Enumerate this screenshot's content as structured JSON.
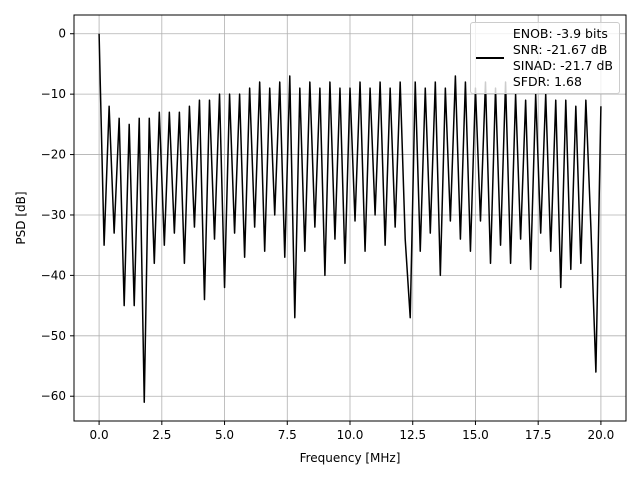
{
  "chart_data": {
    "type": "line",
    "xlabel": "Frequency [MHz]",
    "ylabel": "PSD [dB]",
    "x": [
      0,
      0.2,
      0.4,
      0.6,
      0.8,
      1.0,
      1.2,
      1.4,
      1.6,
      1.8,
      2.0,
      2.2,
      2.4,
      2.6,
      2.8,
      3.0,
      3.2,
      3.4,
      3.6,
      3.8,
      4.0,
      4.2,
      4.4,
      4.6,
      4.8,
      5.0,
      5.2,
      5.4,
      5.6,
      5.8,
      6.0,
      6.2,
      6.4,
      6.6,
      6.8,
      7.0,
      7.2,
      7.4,
      7.6,
      7.8,
      8.0,
      8.2,
      8.4,
      8.6,
      8.8,
      9.0,
      9.2,
      9.4,
      9.6,
      9.8,
      10.0,
      10.2,
      10.4,
      10.6,
      10.8,
      11.0,
      11.2,
      11.4,
      11.6,
      11.8,
      12.0,
      12.2,
      12.4,
      12.6,
      12.8,
      13.0,
      13.2,
      13.4,
      13.6,
      13.8,
      14.0,
      14.2,
      14.4,
      14.6,
      14.8,
      15.0,
      15.2,
      15.4,
      15.6,
      15.8,
      16.0,
      16.2,
      16.4,
      16.6,
      16.8,
      17.0,
      17.2,
      17.4,
      17.6,
      17.8,
      18.0,
      18.2,
      18.4,
      18.6,
      18.8,
      19.0,
      19.2,
      19.4,
      19.6,
      19.8,
      20.0
    ],
    "series": [
      {
        "name": "ENOB: -3.9 bits\nSNR: -21.67 dB\nSINAD: -21.7 dB\nSFDR: 1.68",
        "color": "#000000",
        "values": [
          0,
          -35,
          -12,
          -33,
          -14,
          -45,
          -15,
          -45,
          -14,
          -61,
          -14,
          -38,
          -13,
          -35,
          -13,
          -33,
          -13,
          -38,
          -12,
          -32,
          -11,
          -44,
          -11,
          -34,
          -10,
          -42,
          -10,
          -33,
          -10,
          -37,
          -9,
          -32,
          -8,
          -36,
          -9,
          -30,
          -8,
          -37,
          -7,
          -47,
          -9,
          -36,
          -8,
          -32,
          -9,
          -40,
          -8,
          -34,
          -9,
          -38,
          -9,
          -31,
          -8,
          -36,
          -9,
          -30,
          -8,
          -35,
          -9,
          -32,
          -8,
          -34,
          -47,
          -8,
          -36,
          -9,
          -33,
          -8,
          -40,
          -9,
          -31,
          -7,
          -34,
          -8,
          -36,
          -9,
          -31,
          -8,
          -38,
          -9,
          -35,
          -8,
          -38,
          -10,
          -34,
          -11,
          -39,
          -10,
          -33,
          -10,
          -36,
          -11,
          -42,
          -11,
          -39,
          -12,
          -38,
          -11,
          -32,
          -56,
          -12
        ]
      }
    ],
    "xlim": [
      -1,
      21
    ],
    "ylim": [
      -64.1,
      3.1
    ],
    "xticks": [
      {
        "value": 0,
        "label": "0.0"
      },
      2.5,
      {
        "value": 5,
        "label": "5.0"
      },
      7.5,
      {
        "value": 10,
        "label": "10.0"
      },
      12.5,
      {
        "value": 15,
        "label": "15.0"
      },
      17.5,
      {
        "value": 20,
        "label": "20.0"
      }
    ],
    "yticks": [
      0,
      {
        "value": -10,
        "label": "−10"
      },
      {
        "value": -20,
        "label": "−20"
      },
      {
        "value": -30,
        "label": "−30"
      },
      {
        "value": -40,
        "label": "−40"
      },
      {
        "value": -50,
        "label": "−50"
      },
      {
        "value": -60,
        "label": "−60"
      }
    ],
    "grid": true,
    "legend": "upper right"
  }
}
